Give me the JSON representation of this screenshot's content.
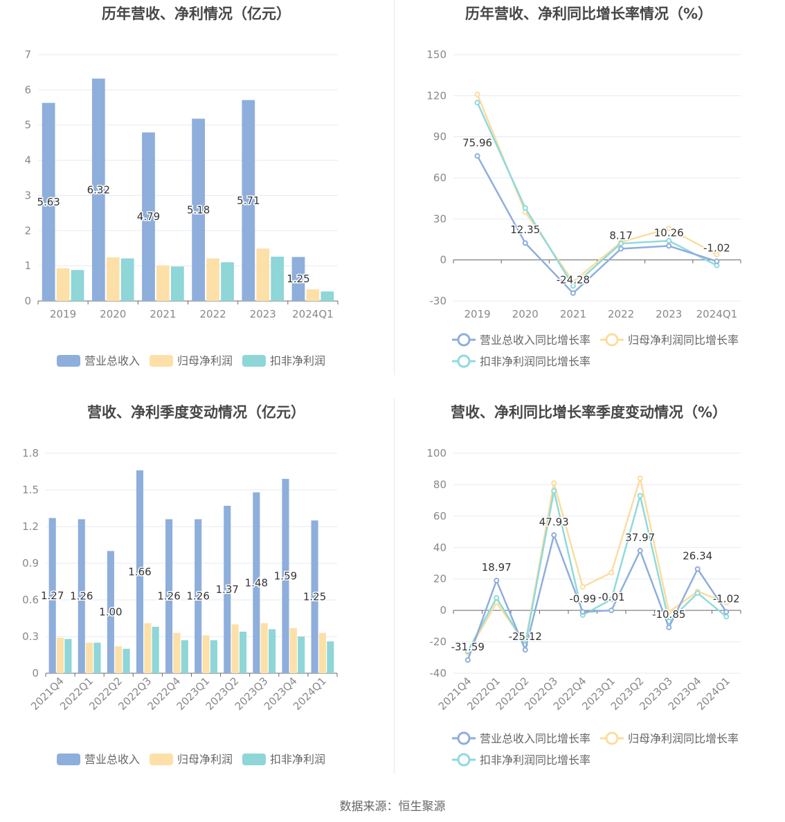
{
  "footer": "数据来源：恒生聚源",
  "colors": {
    "revenue": "#8eaedc",
    "net": "#fde0a8",
    "deducted": "#8ed6d8",
    "revenue_line": "#8eaedc",
    "net_line": "#fcdc9e",
    "deducted_line": "#8edadc"
  },
  "chart_data": [
    {
      "id": "annual-bar",
      "type": "bar",
      "title": "历年营收、净利情况（亿元）",
      "categories": [
        "2019",
        "2020",
        "2021",
        "2022",
        "2023",
        "2024Q1"
      ],
      "ylim": [
        0,
        7
      ],
      "yticks": [
        0,
        1,
        2,
        3,
        4,
        5,
        6,
        7
      ],
      "series": [
        {
          "name": "营业总收入",
          "values": [
            5.63,
            6.32,
            4.79,
            5.18,
            5.71,
            1.25
          ],
          "labels": [
            "5.63",
            "6.32",
            "4.79",
            "5.18",
            "5.71",
            "1.25"
          ]
        },
        {
          "name": "归母净利润",
          "values": [
            0.93,
            1.24,
            1.01,
            1.21,
            1.49,
            0.33
          ]
        },
        {
          "name": "扣非净利润",
          "values": [
            0.88,
            1.21,
            0.98,
            1.1,
            1.26,
            0.27
          ]
        }
      ],
      "legend": "bottom"
    },
    {
      "id": "annual-line",
      "type": "line",
      "title": "历年营收、净利同比增长率情况（%）",
      "categories": [
        "2019",
        "2020",
        "2021",
        "2022",
        "2023",
        "2024Q1"
      ],
      "ylim": [
        -30,
        150
      ],
      "yticks": [
        -30,
        0,
        30,
        60,
        90,
        120,
        150
      ],
      "series": [
        {
          "name": "营业总收入同比增长率",
          "values": [
            75.96,
            12.35,
            -24.28,
            8.17,
            10.26,
            -1.02
          ],
          "labels": [
            "75.96",
            "12.35",
            "-24.28",
            "8.17",
            "10.26",
            "-1.02"
          ]
        },
        {
          "name": "归母净利润同比增长率",
          "values": [
            121,
            35,
            -16,
            13,
            23,
            4
          ]
        },
        {
          "name": "扣非净利润同比增长率",
          "values": [
            115,
            38,
            -19,
            12,
            14,
            -4
          ]
        }
      ],
      "legend": "bottom"
    },
    {
      "id": "quarter-bar",
      "type": "bar",
      "title": "营收、净利季度变动情况（亿元）",
      "categories": [
        "2021Q4",
        "2022Q1",
        "2022Q2",
        "2022Q3",
        "2022Q4",
        "2023Q1",
        "2023Q2",
        "2023Q3",
        "2023Q4",
        "2024Q1"
      ],
      "ylim": [
        0,
        1.8
      ],
      "yticks": [
        0,
        0.3,
        0.6,
        0.9,
        1.2,
        1.5,
        1.8
      ],
      "ytick_labels": [
        "0",
        "0.3",
        "0.6",
        "0.9",
        "1.2",
        "1.5",
        "1.8"
      ],
      "series": [
        {
          "name": "营业总收入",
          "values": [
            1.27,
            1.26,
            1.0,
            1.66,
            1.26,
            1.26,
            1.37,
            1.48,
            1.59,
            1.25
          ],
          "labels": [
            "1.27",
            "1.26",
            "1.00",
            "1.66",
            "1.26",
            "1.26",
            "1.37",
            "1.48",
            "1.59",
            "1.25"
          ]
        },
        {
          "name": "归母净利润",
          "values": [
            0.29,
            0.25,
            0.22,
            0.41,
            0.33,
            0.31,
            0.4,
            0.41,
            0.37,
            0.33
          ]
        },
        {
          "name": "扣非净利润",
          "values": [
            0.28,
            0.25,
            0.2,
            0.38,
            0.27,
            0.27,
            0.34,
            0.36,
            0.3,
            0.26
          ]
        }
      ],
      "legend": "bottom"
    },
    {
      "id": "quarter-line",
      "type": "line",
      "title": "营收、净利同比增长率季度变动情况（%）",
      "categories": [
        "2021Q4",
        "2022Q1",
        "2022Q2",
        "2022Q3",
        "2022Q4",
        "2023Q1",
        "2023Q2",
        "2023Q3",
        "2023Q4",
        "2024Q1"
      ],
      "ylim": [
        -40,
        100
      ],
      "yticks": [
        -40,
        -20,
        0,
        20,
        40,
        60,
        80,
        100
      ],
      "series": [
        {
          "name": "营业总收入同比增长率",
          "values": [
            -31.59,
            18.97,
            -25.12,
            47.93,
            -0.99,
            -0.01,
            37.97,
            -10.85,
            26.34,
            -1.02
          ],
          "labels": [
            "-31.59",
            "18.97",
            "-25.12",
            "47.93",
            "-0.99",
            "-0.01",
            "37.97",
            "-10.85",
            "26.34",
            "-1.02"
          ]
        },
        {
          "name": "归母净利润同比增长率",
          "values": [
            -27,
            5,
            -21,
            81,
            15,
            24,
            84,
            -1,
            12,
            5
          ]
        },
        {
          "name": "扣非净利润同比增长率",
          "values": [
            -26,
            8,
            -22,
            76,
            -3,
            7,
            73,
            -7,
            11,
            -4
          ]
        }
      ],
      "legend": "bottom"
    }
  ]
}
